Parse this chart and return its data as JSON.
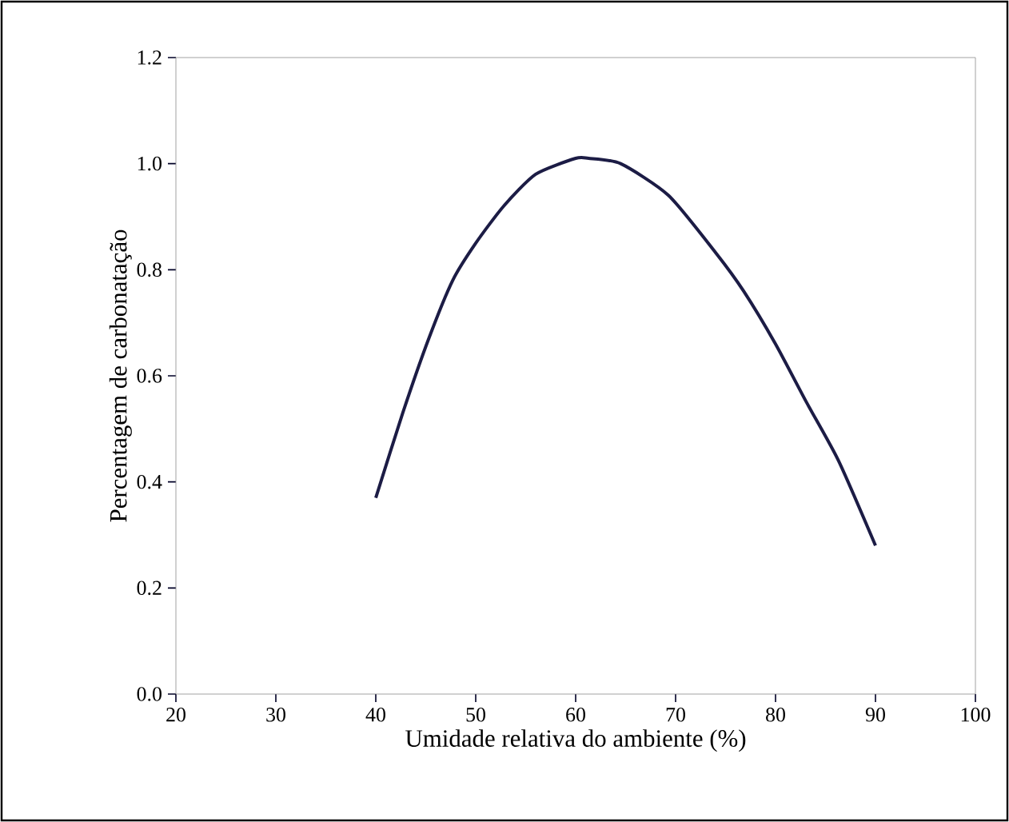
{
  "chart_data": {
    "type": "line",
    "xlabel": "Umidade relativa do ambiente (%)",
    "ylabel": "Percentagem de carbonatação",
    "xlim": [
      20,
      100
    ],
    "xticks": [
      20,
      30,
      40,
      50,
      60,
      70,
      80,
      90,
      100
    ],
    "ylim": [
      0,
      1.2
    ],
    "yticks": [
      {
        "value": 0,
        "label": "0.0"
      },
      {
        "value": 0.2,
        "label": "0.2"
      },
      {
        "value": 0.4,
        "label": "0.4"
      },
      {
        "value": 0.6,
        "label": "0.6"
      },
      {
        "value": 0.8,
        "label": "0.8"
      },
      {
        "value": 1.0,
        "label": "1.0"
      },
      {
        "value": 1.2,
        "label": "1.2"
      }
    ],
    "series": [
      {
        "color": "#1c1c45",
        "x": [
          40,
          42.7,
          45.3,
          47.7,
          50,
          52.8,
          56,
          60,
          61.3,
          64.5,
          69.3,
          74.1,
          76.8,
          80,
          83.1,
          86.3,
          90
        ],
        "values": [
          0.37,
          0.53,
          0.67,
          0.78,
          0.85,
          0.92,
          0.98,
          1.01,
          1.01,
          1.0,
          0.94,
          0.83,
          0.76,
          0.66,
          0.55,
          0.44,
          0.28
        ]
      }
    ]
  }
}
